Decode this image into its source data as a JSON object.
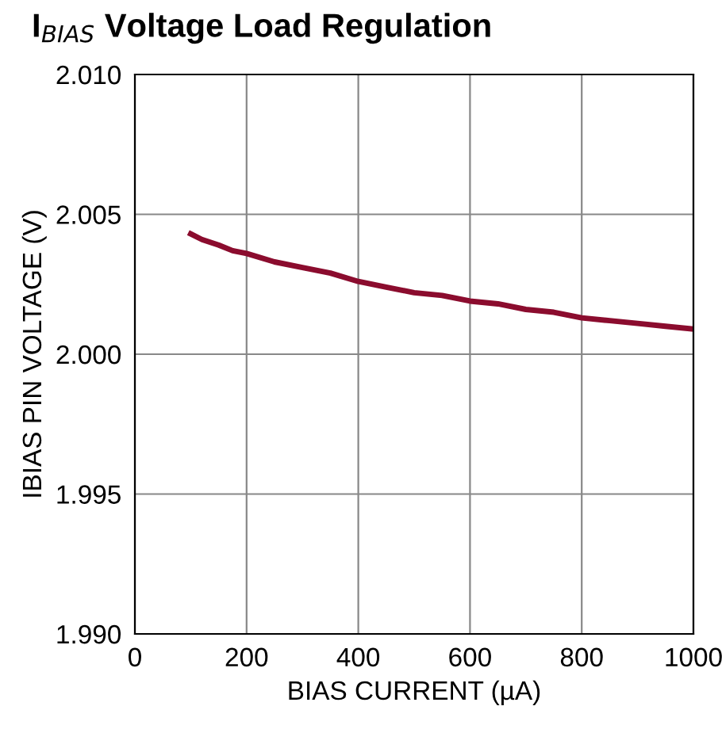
{
  "chart_data": {
    "type": "line",
    "title": "I$_{BIAS}$ Voltage Load Regulation",
    "xlabel": "BIAS CURRENT (µA)",
    "ylabel": "IBIAS PIN VOLTAGE (V)",
    "x": [
      100,
      120,
      150,
      175,
      200,
      250,
      300,
      350,
      400,
      450,
      500,
      550,
      600,
      650,
      700,
      750,
      800,
      850,
      900,
      950,
      1000
    ],
    "series": [
      {
        "color": "#8b0c2e",
        "values": [
          2.0043,
          2.0041,
          2.0039,
          2.0037,
          2.0036,
          2.0033,
          2.0031,
          2.0029,
          2.0026,
          2.0024,
          2.0022,
          2.0021,
          2.0019,
          2.0018,
          2.0016,
          2.0015,
          2.0013,
          2.0012,
          2.0011,
          2.001,
          2.0009
        ]
      }
    ],
    "xlim": [
      0,
      1000
    ],
    "ylim": [
      1.99,
      2.01
    ],
    "xticks": [
      0,
      200,
      400,
      600,
      800,
      1000
    ],
    "yticks": [
      {
        "value": 1.99,
        "label": "1.990"
      },
      {
        "value": 1.995,
        "label": "1.995"
      },
      {
        "value": 2.0,
        "label": "2.000"
      },
      {
        "value": 2.005,
        "label": "2.005"
      },
      {
        "value": 2.01,
        "label": "2.010"
      }
    ],
    "grid": true
  }
}
